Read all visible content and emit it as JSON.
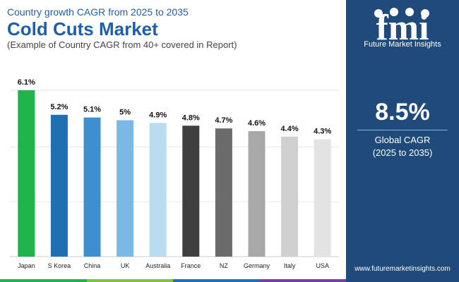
{
  "header": {
    "subtitle": "Country growth CAGR from 2025 to 2035",
    "title": "Cold Cuts Market",
    "note": "(Example of Country CAGR from 40+ covered in Report)"
  },
  "chart_data": {
    "type": "bar",
    "categories": [
      "Japan",
      "S Korea",
      "China",
      "UK",
      "Australia",
      "France",
      "NZ",
      "Germany",
      "Italy",
      "USA"
    ],
    "values": [
      6.1,
      5.2,
      5.1,
      5.0,
      4.9,
      4.8,
      4.7,
      4.6,
      4.4,
      4.3
    ],
    "labels": [
      "6.1%",
      "5.2%",
      "5.1%",
      "5%",
      "4.9%",
      "4.8%",
      "4.7%",
      "4.6%",
      "4.4%",
      "4.3%"
    ],
    "colors": [
      "#1fb34a",
      "#1f6fb2",
      "#3d8fd1",
      "#7ab8e6",
      "#b9dcf2",
      "#3f3f3f",
      "#6b6b6b",
      "#a8a8a8",
      "#d0d0d0",
      "#e3e3e3"
    ],
    "ylim": [
      0,
      6.1
    ],
    "grid": true,
    "title": "",
    "xlabel": "",
    "ylabel": ""
  },
  "panel": {
    "logo_text": "Future Market Insights",
    "value": "8.5%",
    "label_line1": "Global CAGR",
    "label_line2": "(2025 to 2035)",
    "website": "www.futuremarketinsights.com"
  },
  "colors": {
    "title_blue": "#1f5fa8",
    "panel_bg": "#1f4a7a",
    "strip": [
      "#1fb34a",
      "#7cc243",
      "#1f6fb2",
      "#7b3fa0"
    ]
  }
}
